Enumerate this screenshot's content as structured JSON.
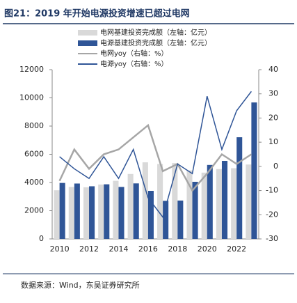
{
  "chart_data": {
    "type": "bar-line",
    "title": "图21：2019 年开始电源投资增速已超过电网",
    "source": "数据来源：Wind，东吴证券研究所",
    "categories": [
      2010,
      2011,
      2012,
      2013,
      2014,
      2015,
      2016,
      2017,
      2018,
      2019,
      2020,
      2021,
      2022,
      2023
    ],
    "xticks": [
      2010,
      2012,
      2014,
      2016,
      2018,
      2020,
      2022
    ],
    "series": [
      {
        "name": "电网基建投资完成额（左轴：亿元）",
        "kind": "bar",
        "color": "#d9d9d9",
        "values": [
          3448,
          3687,
          3661,
          3856,
          4118,
          4603,
          5431,
          5315,
          5374,
          4856,
          4699,
          4951,
          5012,
          5275
        ]
      },
      {
        "name": "电源基建投资完成额（左轴：亿元）",
        "kind": "bar",
        "color": "#2f5597",
        "values": [
          3969,
          3927,
          3732,
          3872,
          3686,
          3936,
          3408,
          2700,
          2721,
          4050,
          5244,
          5530,
          7208,
          9675
        ]
      },
      {
        "name": "电网yoy（右轴：%）",
        "kind": "line",
        "axis": "y2",
        "color": "#a6a6a6",
        "values": [
          -6,
          7,
          -1,
          5,
          7,
          12,
          17,
          -2,
          1,
          -10,
          -3,
          5,
          1,
          5
        ]
      },
      {
        "name": "电源yoy（右轴：%）",
        "kind": "line",
        "axis": "y2",
        "color": "#2f5597",
        "values": [
          4,
          -1,
          -5,
          4,
          -5,
          7,
          -13,
          -21,
          1,
          -3,
          29,
          7,
          23,
          31
        ]
      }
    ],
    "ylim": [
      0,
      12000
    ],
    "yticks": [
      0,
      2000,
      4000,
      6000,
      8000,
      10000,
      12000
    ],
    "y2lim": [
      -30,
      40
    ],
    "y2ticks": [
      -30,
      -20,
      -10,
      0,
      10,
      20,
      30,
      40
    ],
    "legend": "top"
  }
}
